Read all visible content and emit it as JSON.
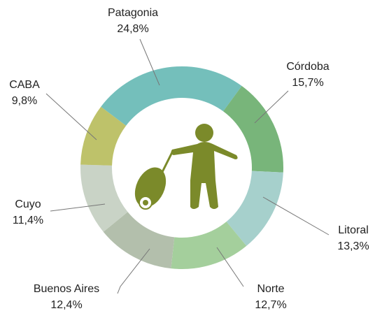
{
  "chart_data": {
    "type": "pie",
    "categories": [
      "Patagonia",
      "Córdoba",
      "Litoral",
      "Norte",
      "Buenos Aires",
      "Cuyo",
      "CABA"
    ],
    "values": [
      24.8,
      15.7,
      13.3,
      12.7,
      12.4,
      11.4,
      9.8
    ],
    "value_labels": [
      "24,8%",
      "15,7%",
      "13,3%",
      "12,7%",
      "12,4%",
      "11,4%",
      "9,8%"
    ],
    "colors": [
      "#74bfbb",
      "#78b57a",
      "#a6d0cc",
      "#a4cf9c",
      "#b3bfac",
      "#c9d3c6",
      "#bec26a"
    ]
  }
}
